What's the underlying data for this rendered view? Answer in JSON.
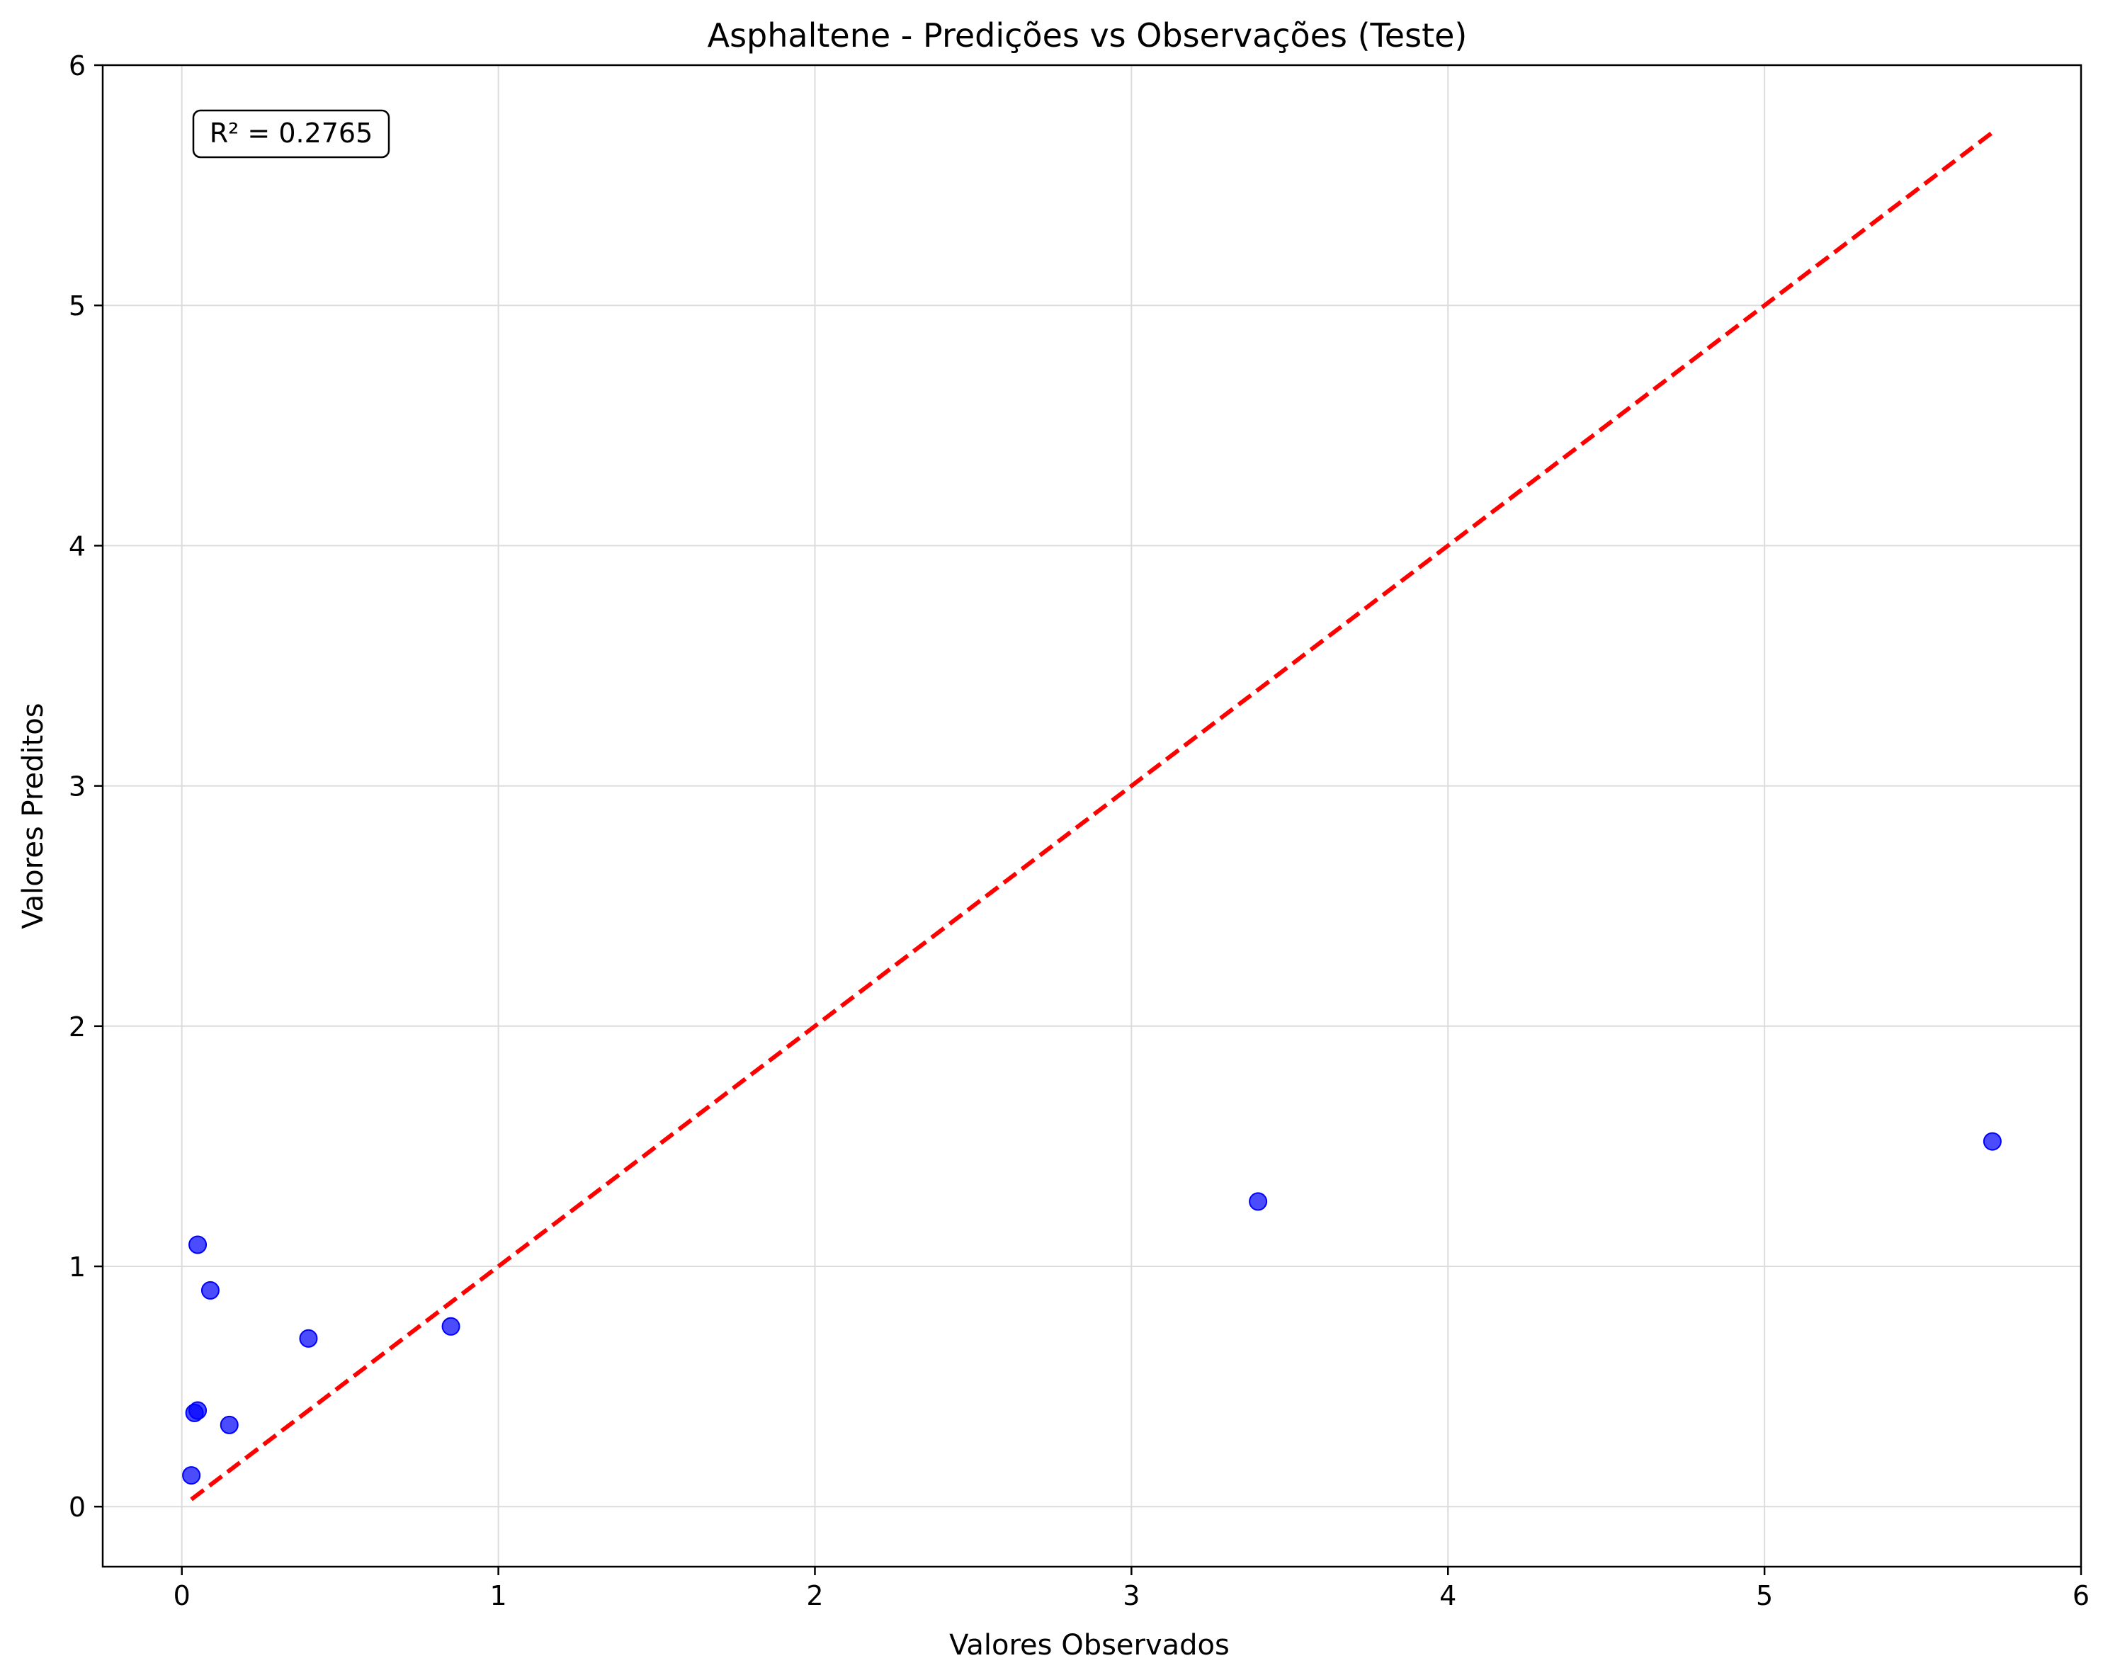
{
  "chart_data": {
    "type": "scatter",
    "title": "Asphaltene - Predições vs Observações (Teste)",
    "xlabel": "Valores Observados",
    "ylabel": "Valores Preditos",
    "xlim": [
      -0.25,
      6.0
    ],
    "ylim": [
      -0.25,
      6.0
    ],
    "xticks": [
      0,
      1,
      2,
      3,
      4,
      5,
      6
    ],
    "yticks": [
      0,
      1,
      2,
      3,
      4,
      5,
      6
    ],
    "grid": true,
    "annotation": "R² = 0.2765",
    "reference_line": {
      "style": "dashed",
      "color": "#ff0000",
      "x": [
        0.03,
        5.72
      ],
      "y": [
        0.03,
        5.72
      ]
    },
    "series": [
      {
        "name": "Teste",
        "color": "#0000ff",
        "x": [
          0.05,
          0.09,
          0.4,
          0.85,
          0.05,
          0.04,
          0.15,
          0.03,
          3.4,
          5.72
        ],
        "y": [
          1.09,
          0.9,
          0.7,
          0.75,
          0.4,
          0.39,
          0.34,
          0.13,
          1.27,
          1.52
        ]
      }
    ]
  }
}
